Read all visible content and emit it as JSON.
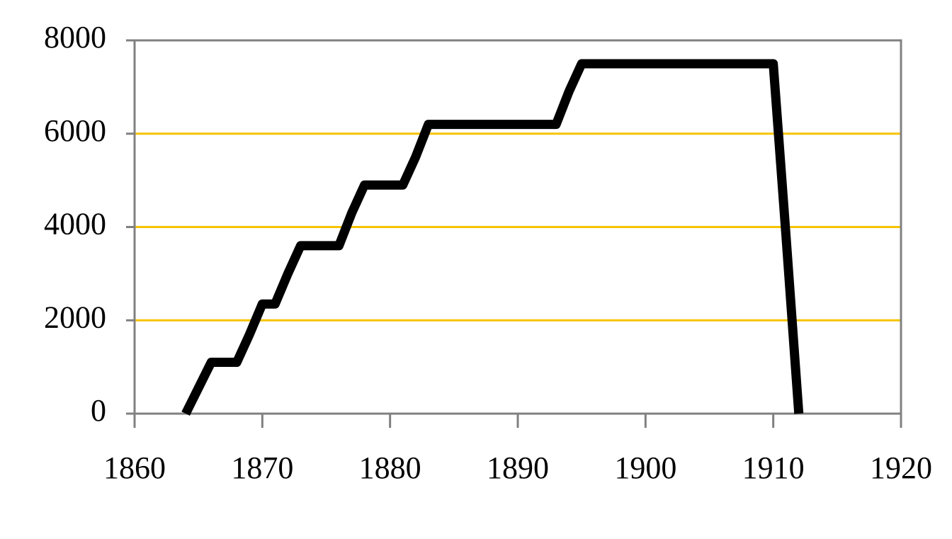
{
  "chart_data": {
    "type": "line",
    "x": [
      1864,
      1865,
      1866,
      1868,
      1869,
      1870,
      1871,
      1872,
      1873,
      1876,
      1877,
      1878,
      1881,
      1882,
      1883,
      1893,
      1894,
      1895,
      1910,
      1911,
      1912
    ],
    "values": [
      0,
      550,
      1100,
      1100,
      1700,
      2350,
      2350,
      3000,
      3600,
      3600,
      4300,
      4900,
      4900,
      5500,
      6200,
      6200,
      6900,
      7500,
      7500,
      3800,
      0
    ],
    "color": "#000000",
    "grid_color": "#f5c400",
    "xlim": [
      1860,
      1920
    ],
    "xticks": [
      1860,
      1870,
      1880,
      1890,
      1900,
      1910,
      1920
    ],
    "ylim": [
      0,
      8000
    ],
    "yticks": [
      0,
      2000,
      4000,
      6000,
      8000
    ],
    "grid": true
  }
}
